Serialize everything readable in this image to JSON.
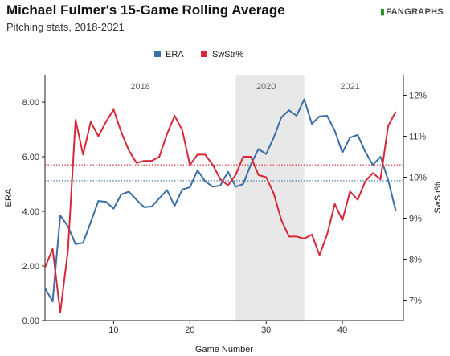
{
  "header": {
    "title": "Michael Fulmer's 15-Game Rolling Average",
    "subtitle": "Pitching stats, 2018-2021",
    "logo_text": "FANGRAPHS"
  },
  "colors": {
    "era": "#3a6ea5",
    "swstr": "#d62839",
    "shade": "#e8e8e8",
    "axis": "#222222"
  },
  "chart_data": {
    "type": "line",
    "title": "Michael Fulmer's 15-Game Rolling Average",
    "subtitle": "Pitching stats, 2018-2021",
    "xlabel": "Game Number",
    "ylabel": "ERA",
    "y2label": "SwStr%",
    "xlim": [
      1,
      48
    ],
    "ylim": [
      0,
      9.0
    ],
    "y2lim": [
      6.5,
      12.5
    ],
    "x_ticks": [
      10,
      20,
      30,
      40
    ],
    "y_ticks": [
      0,
      2,
      4,
      6,
      8
    ],
    "y_tick_labels": [
      "0.00",
      "2.00",
      "4.00",
      "6.00",
      "8.00"
    ],
    "y2_ticks": [
      7,
      8,
      9,
      10,
      11,
      12
    ],
    "y2_tick_labels": [
      "7%",
      "8%",
      "9%",
      "10%",
      "11%",
      "12%"
    ],
    "legend": [
      "ERA",
      "SwStr%"
    ],
    "legend_position": "top-center",
    "season_labels": [
      {
        "label": "2018",
        "x": 13.5
      },
      {
        "label": "2020",
        "x": 30
      },
      {
        "label": "2021",
        "x": 41
      }
    ],
    "shaded_region": [
      26,
      35
    ],
    "series": [
      {
        "name": "ERA",
        "axis": "left",
        "values": [
          1.2,
          0.7,
          3.85,
          3.45,
          2.8,
          2.85,
          3.6,
          4.38,
          4.35,
          4.1,
          4.62,
          4.72,
          4.42,
          4.15,
          4.18,
          4.48,
          4.78,
          4.2,
          4.8,
          4.88,
          5.5,
          5.1,
          4.9,
          4.95,
          5.45,
          4.9,
          5.0,
          5.72,
          6.28,
          6.1,
          6.7,
          7.45,
          7.7,
          7.5,
          8.1,
          7.2,
          7.48,
          7.5,
          6.95,
          6.15,
          6.7,
          6.8,
          6.18,
          5.7,
          6.0,
          5.15,
          4.02
        ]
      },
      {
        "name": "SwStr%",
        "axis": "right",
        "values": [
          7.8,
          8.25,
          6.7,
          8.2,
          11.4,
          10.55,
          11.35,
          11.0,
          11.35,
          11.65,
          11.1,
          10.65,
          10.35,
          10.4,
          10.4,
          10.5,
          11.05,
          11.5,
          11.15,
          10.3,
          10.55,
          10.55,
          10.3,
          9.95,
          9.8,
          10.05,
          10.5,
          10.5,
          10.05,
          10.0,
          9.6,
          8.95,
          8.55,
          8.55,
          8.5,
          8.6,
          8.1,
          8.6,
          9.35,
          8.95,
          9.65,
          9.45,
          9.9,
          10.1,
          9.95,
          11.25,
          11.6
        ]
      }
    ],
    "reference_lines": [
      {
        "series": "ERA",
        "axis": "left",
        "value": 5.12,
        "style": "dotted"
      },
      {
        "series": "SwStr%",
        "axis": "right",
        "value": 10.3,
        "style": "dotted"
      }
    ]
  }
}
